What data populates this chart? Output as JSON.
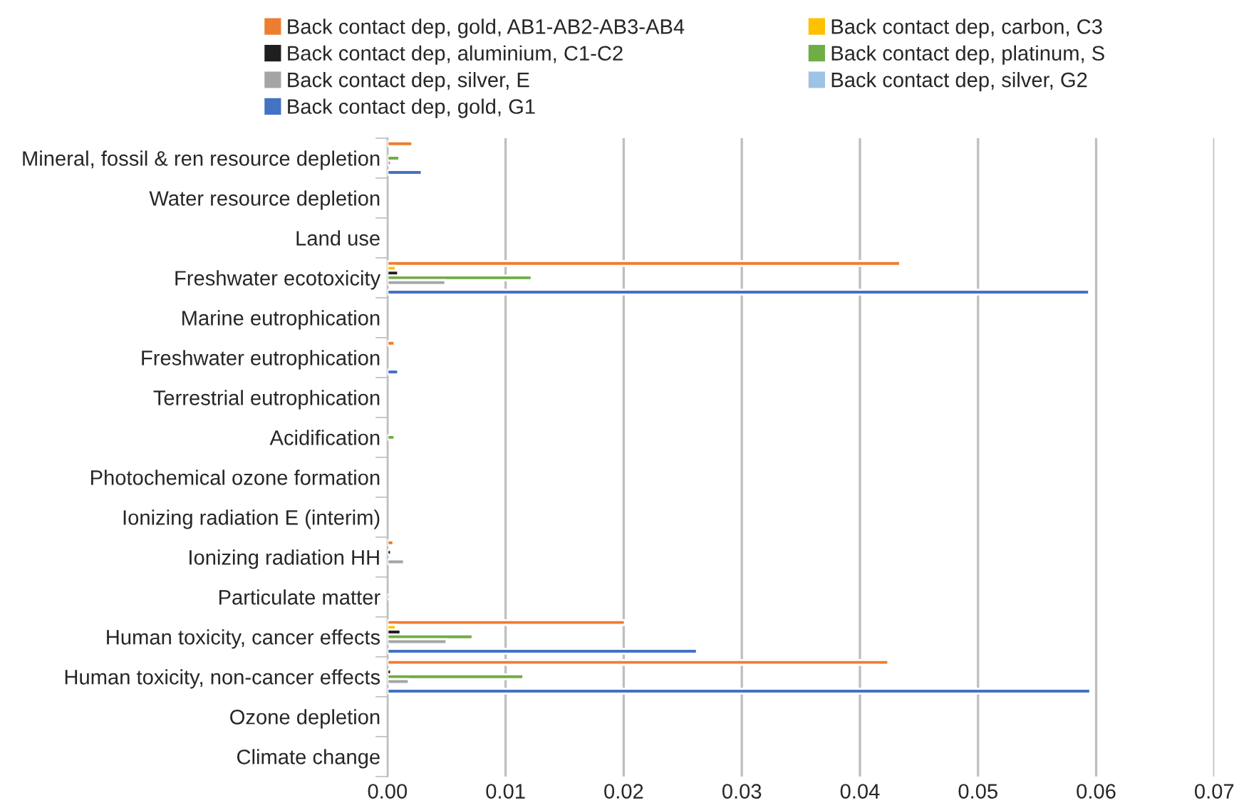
{
  "chart_data": {
    "type": "bar",
    "orientation": "horizontal",
    "categories": [
      "Mineral, fossil & ren resource depletion",
      "Water resource depletion",
      "Land use",
      "Freshwater ecotoxicity",
      "Marine eutrophication",
      "Freshwater eutrophication",
      "Terrestrial eutrophication",
      "Acidification",
      "Photochemical ozone formation",
      "Ionizing radiation E (interim)",
      "Ionizing radiation HH",
      "Particulate matter",
      "Human toxicity, cancer effects",
      "Human toxicity, non-cancer effects",
      "Ozone depletion",
      "Climate change"
    ],
    "series": [
      {
        "name": "Back contact dep, gold, AB1-AB2-AB3-AB4",
        "color": "#ed7d31",
        "values": [
          0.0021,
          null,
          null,
          0.0434,
          null,
          0.0006,
          null,
          null,
          null,
          null,
          0.0005,
          null,
          0.0201,
          0.0424,
          null,
          null
        ]
      },
      {
        "name": "Back contact dep, carbon, C3",
        "color": "#ffc000",
        "values": [
          null,
          null,
          null,
          0.0007,
          null,
          null,
          null,
          null,
          null,
          null,
          null,
          null,
          0.0007,
          null,
          null,
          null
        ]
      },
      {
        "name": "Back contact dep, aluminium, C1-C2",
        "color": "#1f1f1f",
        "values": [
          null,
          null,
          null,
          0.0009,
          null,
          null,
          null,
          null,
          null,
          null,
          0.0003,
          null,
          0.0011,
          0.0003,
          null,
          null
        ]
      },
      {
        "name": "Back contact dep, platinum, S",
        "color": "#70ad47",
        "values": [
          0.001,
          null,
          null,
          0.0122,
          null,
          null,
          null,
          0.0006,
          null,
          null,
          null,
          0.0002,
          0.0072,
          0.0115,
          null,
          null
        ]
      },
      {
        "name": "Back contact dep, silver, E",
        "color": "#a5a5a5",
        "values": [
          0.0003,
          null,
          null,
          0.0049,
          null,
          null,
          null,
          null,
          null,
          null,
          0.0014,
          null,
          0.005,
          0.0018,
          null,
          null
        ]
      },
      {
        "name": "Back contact dep, silver, G2",
        "color": "#9dc3e6",
        "values": [
          null,
          null,
          null,
          null,
          null,
          null,
          null,
          null,
          null,
          null,
          null,
          null,
          null,
          null,
          null,
          null
        ]
      },
      {
        "name": "Back contact dep, gold, G1",
        "color": "#4472c4",
        "values": [
          0.0029,
          null,
          null,
          0.0594,
          null,
          0.0009,
          null,
          null,
          null,
          null,
          null,
          null,
          0.0262,
          0.0595,
          null,
          null
        ]
      }
    ],
    "xlim": [
      0,
      0.07
    ],
    "xticks": [
      {
        "value": 0,
        "label": "0.00"
      },
      {
        "value": 0.01,
        "label": "0.01"
      },
      {
        "value": 0.02,
        "label": "0.02"
      },
      {
        "value": 0.03,
        "label": "0.03"
      },
      {
        "value": 0.04,
        "label": "0.04"
      },
      {
        "value": 0.05,
        "label": "0.05"
      },
      {
        "value": 0.06,
        "label": "0.06"
      },
      {
        "value": 0.07,
        "label": "0.07"
      }
    ],
    "grid": "x",
    "legend": "top"
  }
}
